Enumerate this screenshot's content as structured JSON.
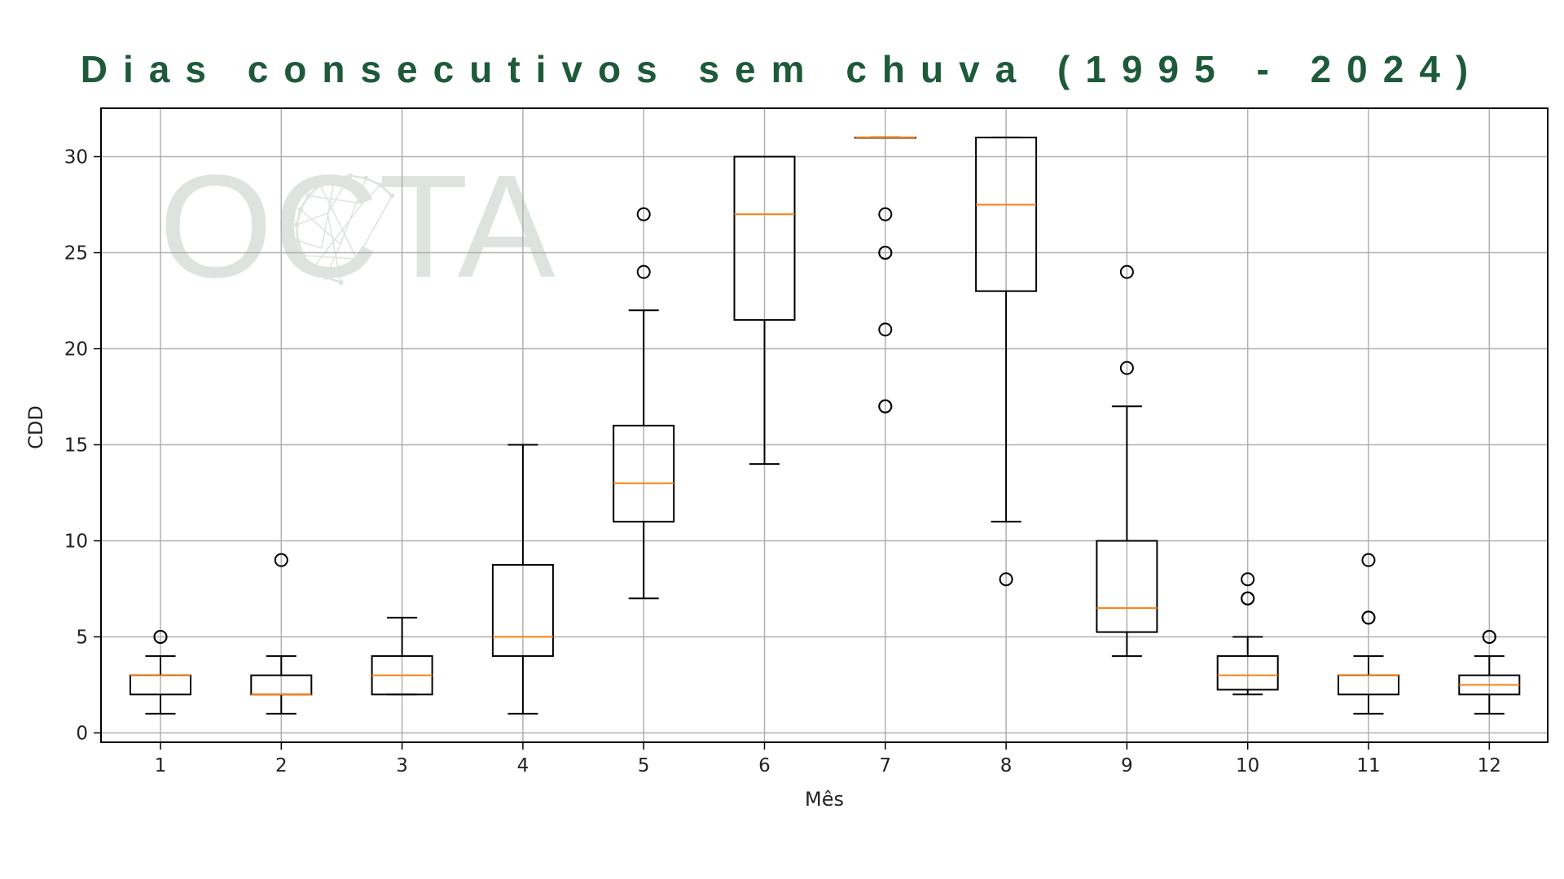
{
  "chart_data": {
    "type": "box",
    "title": "Dias consecutivos sem chuva (1995 - 2024)",
    "xlabel": "Mês",
    "ylabel": "CDD",
    "categories": [
      "1",
      "2",
      "3",
      "4",
      "5",
      "6",
      "7",
      "8",
      "9",
      "10",
      "11",
      "12"
    ],
    "yticks": [
      0,
      5,
      10,
      15,
      20,
      25,
      30
    ],
    "ylim": [
      -0.5,
      32.5
    ],
    "grid": true,
    "watermark": "OCTA",
    "colors": {
      "box": "#000000",
      "median": "#ff7f0e",
      "grid": "#b0b0b0",
      "title": "#1e5a3a",
      "watermark": "#dde4df"
    },
    "boxes": [
      {
        "month": "1",
        "whislo": 1,
        "q1": 2,
        "med": 3,
        "q3": 3,
        "whishi": 4,
        "fliers": [
          5,
          5
        ]
      },
      {
        "month": "2",
        "whislo": 1,
        "q1": 2,
        "med": 2,
        "q3": 3,
        "whishi": 4,
        "fliers": [
          9
        ]
      },
      {
        "month": "3",
        "whislo": 2,
        "q1": 2,
        "med": 3,
        "q3": 4,
        "whishi": 6,
        "fliers": []
      },
      {
        "month": "4",
        "whislo": 1,
        "q1": 4,
        "med": 5,
        "q3": 8.75,
        "whishi": 15,
        "fliers": []
      },
      {
        "month": "5",
        "whislo": 7,
        "q1": 11,
        "med": 13,
        "q3": 16,
        "whishi": 22,
        "fliers": [
          24,
          27
        ]
      },
      {
        "month": "6",
        "whislo": 14,
        "q1": 21.5,
        "med": 27,
        "q3": 30,
        "whishi": 30,
        "fliers": []
      },
      {
        "month": "7",
        "whislo": 31,
        "q1": 31,
        "med": 31,
        "q3": 31,
        "whishi": 31,
        "fliers": [
          17,
          17,
          21,
          25,
          25,
          27
        ]
      },
      {
        "month": "8",
        "whislo": 11,
        "q1": 23,
        "med": 27.5,
        "q3": 31,
        "whishi": 31,
        "fliers": [
          8
        ]
      },
      {
        "month": "9",
        "whislo": 4,
        "q1": 5.25,
        "med": 6.5,
        "q3": 10,
        "whishi": 17,
        "fliers": [
          19,
          24
        ]
      },
      {
        "month": "10",
        "whislo": 2,
        "q1": 2.25,
        "med": 3,
        "q3": 4,
        "whishi": 5,
        "fliers": [
          7,
          7,
          8
        ]
      },
      {
        "month": "11",
        "whislo": 1,
        "q1": 2,
        "med": 3,
        "q3": 3,
        "whishi": 4,
        "fliers": [
          6,
          6,
          9
        ]
      },
      {
        "month": "12",
        "whislo": 1,
        "q1": 2,
        "med": 2.5,
        "q3": 3,
        "whishi": 4,
        "fliers": [
          5,
          5
        ]
      }
    ]
  }
}
